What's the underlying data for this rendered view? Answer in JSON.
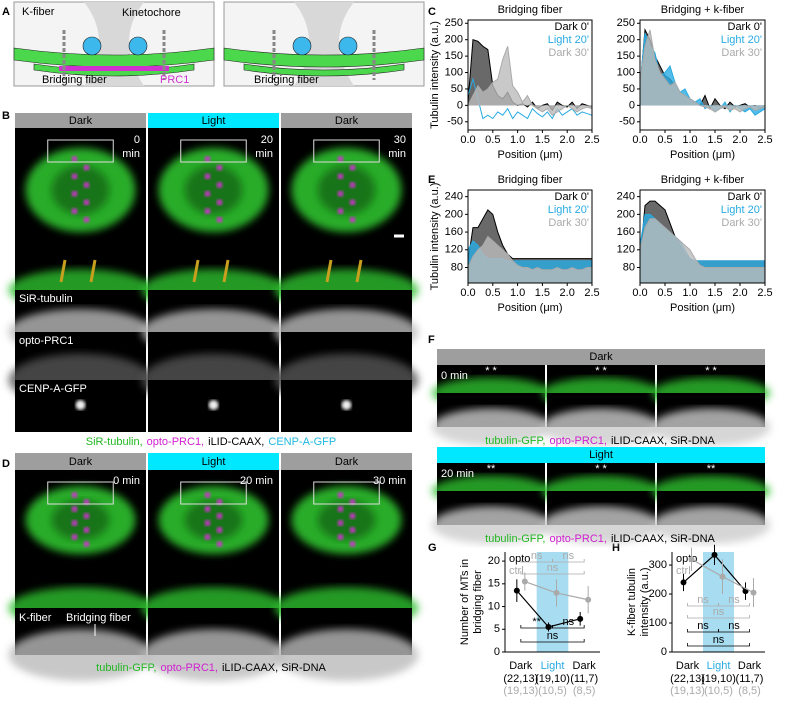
{
  "panel_labels": {
    "a": "A",
    "b": "B",
    "c": "C",
    "d": "D",
    "e": "E",
    "f": "F",
    "g": "G",
    "h": "H"
  },
  "panel_a": {
    "k_fiber": "K-fiber",
    "kinetochore": "Kinetochore",
    "bridging_fiber_left": "Bridging fiber",
    "prc1": "PRC1",
    "bridging_fiber_right": "Bridging fiber"
  },
  "panel_b": {
    "headers": [
      "Dark",
      "Light",
      "Dark"
    ],
    "header_colors": [
      "#9e9e9e",
      "#00e8ff",
      "#9e9e9e"
    ],
    "times": [
      "0",
      "20",
      "30"
    ],
    "time_unit": "min",
    "channels": [
      "SiR-tubulin",
      "opto-PRC1",
      "CENP-A-GFP"
    ],
    "caption": [
      {
        "text": "SiR-tubulin,",
        "color": "#22b822"
      },
      {
        "text": "opto-PRC1,",
        "color": "#d020d0"
      },
      {
        "text": "iLID-CAAX,",
        "color": "#000000"
      },
      {
        "text": "CENP-A-GFP",
        "color": "#20b8e0"
      }
    ]
  },
  "panel_d": {
    "headers": [
      "Dark",
      "Light",
      "Dark"
    ],
    "header_colors": [
      "#9e9e9e",
      "#00e8ff",
      "#9e9e9e"
    ],
    "times": [
      "0 min",
      "20 min",
      "30 min"
    ],
    "k_fiber": "K-fiber",
    "bridging_fiber": "Bridging fiber",
    "caption": [
      {
        "text": "tubulin-GFP,",
        "color": "#22b822"
      },
      {
        "text": "opto-PRC1,",
        "color": "#d020d0"
      },
      {
        "text": "iLID-CAAX, SiR-DNA",
        "color": "#000000"
      }
    ]
  },
  "panel_f": {
    "dark_header": "Dark",
    "dark_color": "#9e9e9e",
    "dark_time": "0 min",
    "dark_markers": [
      "* *",
      "* *",
      "* *"
    ],
    "light_header": "Light",
    "light_color": "#00e8ff",
    "light_time": "20 min",
    "light_markers": [
      "**",
      "* *",
      "**"
    ],
    "caption": [
      {
        "text": "tubulin-GFP,",
        "color": "#22b822"
      },
      {
        "text": "opto-PRC1,",
        "color": "#d020d0"
      },
      {
        "text": "iLID-CAAX, SiR-DNA",
        "color": "#000000"
      }
    ]
  },
  "chart_data": [
    {
      "type": "line",
      "title": "Bridging fiber",
      "ylabel": "Tubulin intensity (a.u.)",
      "xlabel": "Position (μm)",
      "x": [
        0,
        0.1,
        0.2,
        0.3,
        0.4,
        0.5,
        0.6,
        0.7,
        0.8,
        0.9,
        1,
        1.1,
        1.2,
        1.3,
        1.4,
        1.5,
        1.6,
        1.7,
        1.8,
        1.9,
        2,
        2.1,
        2.2,
        2.3,
        2.4,
        2.5
      ],
      "xlim": [
        0,
        2.5
      ],
      "xticks": [
        {
          "value": 0,
          "label": "0.0"
        },
        0.5,
        {
          "value": 1,
          "label": "1.0"
        },
        1.5,
        {
          "value": 2,
          "label": "2.0"
        },
        2.5
      ],
      "ylim": [
        -75,
        260
      ],
      "yticks": [
        -50,
        0,
        50,
        100,
        150,
        200,
        250
      ],
      "series": [
        {
          "name": "Dark 0'",
          "color": "#000000",
          "fill": "#444444",
          "values": [
            10,
            200,
            195,
            180,
            170,
            60,
            30,
            20,
            40,
            10,
            0,
            5,
            -5,
            10,
            -10,
            0,
            5,
            -15,
            10,
            0,
            -5,
            10,
            -10,
            5,
            0,
            -5
          ]
        },
        {
          "name": "Light 20'",
          "color": "#29abe2",
          "values": [
            30,
            80,
            20,
            -40,
            -30,
            -40,
            -20,
            -30,
            -10,
            -40,
            -20,
            -30,
            -40,
            -10,
            -25,
            -35,
            -20,
            -40,
            -10,
            -30,
            -20,
            -10,
            -30,
            -20,
            -25,
            -30
          ]
        },
        {
          "name": "Dark 30'",
          "color": "#aaaaaa",
          "fill": "#bbbbbb",
          "values": [
            0,
            30,
            60,
            40,
            50,
            70,
            80,
            140,
            180,
            60,
            40,
            10,
            30,
            0,
            -10,
            -20,
            -10,
            -30,
            -20,
            -10,
            0,
            -10,
            -20,
            -10,
            -5,
            -10
          ]
        }
      ]
    },
    {
      "type": "line",
      "title": "Bridging + k-fiber",
      "xlabel": "Position (μm)",
      "x": [
        0,
        0.1,
        0.2,
        0.3,
        0.4,
        0.5,
        0.6,
        0.7,
        0.8,
        0.9,
        1,
        1.1,
        1.2,
        1.3,
        1.4,
        1.5,
        1.6,
        1.7,
        1.8,
        1.9,
        2,
        2.1,
        2.2,
        2.3,
        2.4,
        2.5
      ],
      "xlim": [
        0,
        2.5
      ],
      "xticks": [
        {
          "value": 0,
          "label": "0.0"
        },
        0.5,
        {
          "value": 1,
          "label": "1.0"
        },
        1.5,
        {
          "value": 2,
          "label": "2.0"
        },
        2.5
      ],
      "ylim": [
        -75,
        260
      ],
      "yticks": [
        -50,
        0,
        50,
        100,
        150,
        200,
        250
      ],
      "series": [
        {
          "name": "Dark 0'",
          "color": "#000000",
          "fill": "#444444",
          "values": [
            50,
            230,
            200,
            150,
            120,
            90,
            80,
            60,
            40,
            30,
            20,
            10,
            0,
            30,
            -10,
            20,
            0,
            -10,
            10,
            -5,
            0,
            5,
            -5,
            0,
            -10,
            0
          ]
        },
        {
          "name": "Light 20'",
          "color": "#29abe2",
          "fill": "#29abe2",
          "values": [
            60,
            220,
            180,
            160,
            90,
            100,
            120,
            70,
            40,
            50,
            20,
            10,
            20,
            -10,
            0,
            -20,
            -10,
            10,
            -20,
            0,
            -10,
            -20,
            -10,
            -30,
            -20,
            -10
          ]
        },
        {
          "name": "Dark 30'",
          "color": "#aaaaaa",
          "fill": "#bbbbbb",
          "values": [
            70,
            180,
            230,
            140,
            100,
            80,
            60,
            70,
            40,
            30,
            20,
            10,
            0,
            -5,
            -10,
            -20,
            -10,
            -5,
            -15,
            -10,
            -20,
            -10,
            -5,
            -15,
            -10,
            -5
          ]
        }
      ]
    },
    {
      "type": "line",
      "title": "Bridging fiber",
      "ylabel": "Tubulin intensity (a.u.)",
      "xlabel": "Position (μm)",
      "x": [
        0,
        0.1,
        0.2,
        0.3,
        0.4,
        0.5,
        0.6,
        0.7,
        0.8,
        0.9,
        1,
        1.1,
        1.2,
        1.3,
        1.4,
        1.5,
        1.6,
        1.7,
        1.8,
        1.9,
        2,
        2.1,
        2.2,
        2.3,
        2.4,
        2.5
      ],
      "xlim": [
        0,
        2.5
      ],
      "xticks": [
        {
          "value": 0,
          "label": "0.0"
        },
        0.5,
        {
          "value": 1,
          "label": "1.0"
        },
        1.5,
        {
          "value": 2,
          "label": "2.0"
        },
        2.5
      ],
      "ylim": [
        45,
        255
      ],
      "yticks": [
        80,
        120,
        160,
        200,
        240
      ],
      "series": [
        {
          "name": "Dark 0'",
          "color": "#000000",
          "fill": "#444444",
          "values": [
            95,
            170,
            170,
            190,
            210,
            200,
            160,
            130,
            110,
            100,
            100,
            100,
            100,
            100,
            100,
            100,
            100,
            100,
            100,
            100,
            100,
            100,
            100,
            100,
            100,
            100
          ]
        },
        {
          "name": "Light 20'",
          "color": "#29abe2",
          "fill": "#29abe2",
          "values": [
            120,
            140,
            130,
            110,
            100,
            100,
            100,
            100,
            95,
            95,
            95,
            95,
            95,
            95,
            95,
            95,
            95,
            95,
            95,
            95,
            95,
            95,
            95,
            95,
            95,
            95
          ]
        },
        {
          "name": "Dark 30'",
          "color": "#aaaaaa",
          "fill": "#bbbbbb",
          "values": [
            80,
            105,
            120,
            130,
            150,
            140,
            130,
            120,
            110,
            95,
            85,
            80,
            80,
            75,
            80,
            75,
            75,
            75,
            80,
            75,
            75,
            80,
            75,
            75,
            80,
            80
          ]
        }
      ]
    },
    {
      "type": "line",
      "title": "Bridging + k-fiber",
      "xlabel": "Position (μm)",
      "x": [
        0,
        0.1,
        0.2,
        0.3,
        0.4,
        0.5,
        0.6,
        0.7,
        0.8,
        0.9,
        1,
        1.1,
        1.2,
        1.3,
        1.4,
        1.5,
        1.6,
        1.7,
        1.8,
        1.9,
        2,
        2.1,
        2.2,
        2.3,
        2.4,
        2.5
      ],
      "xlim": [
        0,
        2.5
      ],
      "xticks": [
        {
          "value": 0,
          "label": "0.0"
        },
        0.5,
        {
          "value": 1,
          "label": "1.0"
        },
        1.5,
        {
          "value": 2,
          "label": "2.0"
        },
        2.5
      ],
      "ylim": [
        45,
        255
      ],
      "yticks": [
        80,
        120,
        160,
        200,
        240
      ],
      "series": [
        {
          "name": "Dark 0'",
          "color": "#000000",
          "fill": "#444444",
          "values": [
            95,
            220,
            230,
            230,
            220,
            210,
            180,
            150,
            130,
            110,
            100,
            95,
            95,
            95,
            95,
            95,
            95,
            95,
            95,
            95,
            95,
            95,
            95,
            95,
            95,
            95
          ]
        },
        {
          "name": "Light 20'",
          "color": "#29abe2",
          "fill": "#29abe2",
          "values": [
            130,
            200,
            200,
            190,
            180,
            170,
            160,
            150,
            140,
            120,
            100,
            95,
            95,
            95,
            95,
            95,
            95,
            95,
            95,
            95,
            95,
            95,
            95,
            95,
            95,
            95
          ]
        },
        {
          "name": "Dark 30'",
          "color": "#aaaaaa",
          "fill": "#bbbbbb",
          "values": [
            120,
            170,
            190,
            190,
            180,
            170,
            160,
            150,
            140,
            130,
            120,
            100,
            85,
            80,
            80,
            80,
            80,
            80,
            80,
            80,
            80,
            80,
            80,
            80,
            80,
            80
          ]
        }
      ]
    },
    {
      "type": "errorbar",
      "ylabel": [
        "Number of MTs in",
        "bridging fiber"
      ],
      "categories": [
        "Dark",
        "Light",
        "Dark"
      ],
      "band_color": "#a8dcf0",
      "ylim": [
        0,
        22
      ],
      "yticks": [
        0,
        5,
        10,
        15,
        20
      ],
      "n_opto": [
        "(22,13)",
        "(19,10)",
        "(11,7)"
      ],
      "n_ctrl": [
        "(19,13)",
        "(10,5)",
        "(8,5)"
      ],
      "series": [
        {
          "name": "opto",
          "color": "#000000",
          "values": [
            13.5,
            5.5,
            7.3
          ],
          "errors": [
            2.5,
            1,
            1.5
          ],
          "annotations": [
            "**",
            "ns",
            "ns"
          ]
        },
        {
          "name": "ctrl",
          "color": "#aaaaaa",
          "values": [
            15.5,
            13,
            11.5
          ],
          "errors": [
            2,
            3,
            3
          ],
          "annotations": [
            "ns",
            "ns",
            "ns"
          ]
        }
      ]
    },
    {
      "type": "errorbar",
      "ylabel": [
        "K-fiber tubulin",
        "intensity (a.u.)"
      ],
      "categories": [
        "Dark",
        "Light",
        "Dark"
      ],
      "band_color": "#a8dcf0",
      "ylim": [
        0,
        345
      ],
      "yticks": [
        0,
        100,
        200,
        300
      ],
      "n_opto": [
        "(22,13)",
        "(19,10)",
        "(11,7)"
      ],
      "n_ctrl": [
        "(19,13)",
        "(10,5)",
        "(8,5)"
      ],
      "series": [
        {
          "name": "opto",
          "color": "#000000",
          "values": [
            240,
            335,
            210
          ],
          "errors": [
            30,
            35,
            30
          ],
          "annotations": [
            "ns",
            "ns",
            "ns"
          ]
        },
        {
          "name": "ctrl",
          "color": "#aaaaaa",
          "values": [
            320,
            260,
            205
          ],
          "errors": [
            40,
            60,
            50
          ],
          "annotations": [
            "ns",
            "ns",
            "ns"
          ]
        }
      ]
    }
  ]
}
